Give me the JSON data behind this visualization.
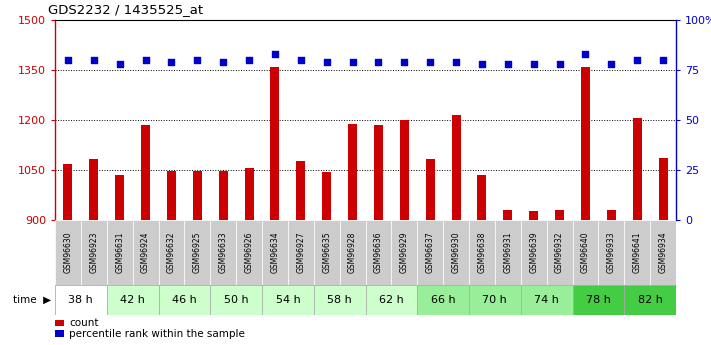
{
  "title": "GDS2232 / 1435525_at",
  "samples": [
    "GSM96630",
    "GSM96923",
    "GSM96631",
    "GSM96924",
    "GSM96632",
    "GSM96925",
    "GSM96633",
    "GSM96926",
    "GSM96634",
    "GSM96927",
    "GSM96635",
    "GSM96928",
    "GSM96636",
    "GSM96929",
    "GSM96637",
    "GSM96930",
    "GSM96638",
    "GSM96931",
    "GSM96639",
    "GSM96932",
    "GSM96640",
    "GSM96933",
    "GSM96641",
    "GSM96934"
  ],
  "counts": [
    1068,
    1082,
    1035,
    1185,
    1047,
    1047,
    1047,
    1055,
    1360,
    1077,
    1043,
    1188,
    1185,
    1200,
    1083,
    1215,
    1035,
    930,
    927,
    930,
    1360,
    930,
    1205,
    1085
  ],
  "percentiles": [
    80,
    80,
    78,
    80,
    79,
    80,
    79,
    80,
    83,
    80,
    79,
    79,
    79,
    79,
    79,
    79,
    78,
    78,
    78,
    78,
    83,
    78,
    80,
    80
  ],
  "time_groups": [
    {
      "label": "38 h",
      "start": 0,
      "end": 1,
      "color": "#ffffff"
    },
    {
      "label": "42 h",
      "start": 2,
      "end": 3,
      "color": "#ccffcc"
    },
    {
      "label": "46 h",
      "start": 4,
      "end": 5,
      "color": "#ccffcc"
    },
    {
      "label": "50 h",
      "start": 6,
      "end": 7,
      "color": "#ccffcc"
    },
    {
      "label": "54 h",
      "start": 8,
      "end": 9,
      "color": "#ccffcc"
    },
    {
      "label": "58 h",
      "start": 10,
      "end": 11,
      "color": "#ccffcc"
    },
    {
      "label": "62 h",
      "start": 12,
      "end": 13,
      "color": "#ccffcc"
    },
    {
      "label": "66 h",
      "start": 14,
      "end": 15,
      "color": "#99ee99"
    },
    {
      "label": "70 h",
      "start": 16,
      "end": 17,
      "color": "#99ee99"
    },
    {
      "label": "74 h",
      "start": 18,
      "end": 19,
      "color": "#99ee99"
    },
    {
      "label": "78 h",
      "start": 20,
      "end": 21,
      "color": "#44cc44"
    },
    {
      "label": "82 h",
      "start": 22,
      "end": 23,
      "color": "#44cc44"
    }
  ],
  "bar_color": "#cc0000",
  "dot_color": "#0000cc",
  "ylim_left": [
    900,
    1500
  ],
  "ylim_right": [
    0,
    100
  ],
  "yticks_left": [
    900,
    1050,
    1200,
    1350,
    1500
  ],
  "yticks_right": [
    0,
    25,
    50,
    75,
    100
  ],
  "sample_bg": "#cccccc",
  "legend_count": "count",
  "legend_pct": "percentile rank within the sample"
}
